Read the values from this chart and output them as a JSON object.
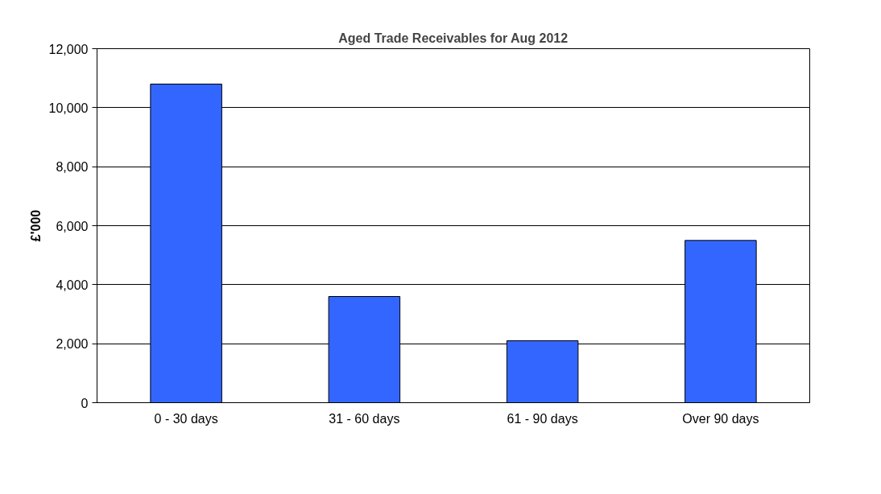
{
  "chart_data": {
    "type": "bar",
    "title": "Aged Trade Receivables for Aug 2012",
    "ylabel": "£'000",
    "categories": [
      "0 - 30 days",
      "31 - 60 days",
      "61 - 90 days",
      "Over 90 days"
    ],
    "values": [
      10800,
      3600,
      2100,
      5500
    ],
    "color": "#3366ff",
    "ylim": [
      0,
      12000
    ],
    "yticks": [
      {
        "value": 0,
        "label": "0"
      },
      {
        "value": 2000,
        "label": "2,000"
      },
      {
        "value": 4000,
        "label": "4,000"
      },
      {
        "value": 6000,
        "label": "6,000"
      },
      {
        "value": 8000,
        "label": "8,000"
      },
      {
        "value": 10000,
        "label": "10,000"
      },
      {
        "value": 12000,
        "label": "12,000"
      }
    ],
    "grid": "y"
  }
}
